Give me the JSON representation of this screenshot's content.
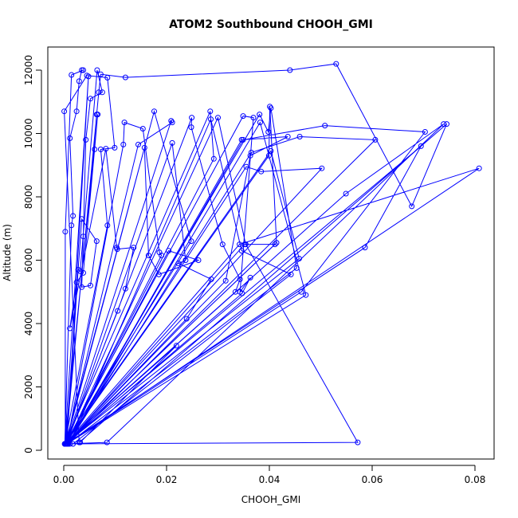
{
  "chart_data": {
    "type": "line",
    "title": "ATOM2 Southbound CHOOH_GMI",
    "xlabel": "CHOOH_GMI",
    "ylabel": "Altitude (m)",
    "xlim": [
      0,
      0.082
    ],
    "ylim": [
      0,
      12500
    ],
    "x_ticks": [
      0.0,
      0.02,
      0.04,
      0.06,
      0.08
    ],
    "x_tick_labels": [
      "0.00",
      "0.02",
      "0.04",
      "0.06",
      "0.08"
    ],
    "y_ticks": [
      0,
      2000,
      4000,
      6000,
      8000,
      10000,
      12000
    ],
    "y_tick_labels": [
      "0",
      "2000",
      "4000",
      "6000",
      "8000",
      "10000",
      "12000"
    ],
    "grid": false,
    "legend": "none",
    "color": "#0000ff",
    "series": [
      {
        "x": [
          0.0003,
          0.0003,
          0.0015,
          0.0038,
          0.0035,
          0.003,
          0.0025,
          0.0012,
          0.0018,
          0.0015,
          0.0002,
          0.0048,
          0.0006,
          0.0028,
          0.0032,
          0.0065,
          0.0075,
          0.0052,
          0.0043,
          0.0038,
          0.0035,
          0.0052,
          0.0064,
          0.0035,
          0.0004,
          0.0064,
          0.0068,
          0.0072,
          0.012,
          0.044,
          0.053,
          0.0677,
          0.0745,
          0.003,
          0.0001,
          0.0045,
          0.0085,
          0.0099,
          0.0072,
          0.0085,
          0.0002,
          0.0066,
          0.006,
          0.0038,
          0.0025,
          0.0012,
          0.0082,
          0.0103,
          0.0104,
          0.0136,
          0.012,
          0.0105,
          0.0004,
          0.0145,
          0.0211,
          0.0209,
          0.0004,
          0.0157,
          0.0165,
          0.0185,
          0.0262,
          0.0204,
          0.0005,
          0.0211,
          0.0237,
          0.0223,
          0.0287,
          0.0239,
          0.0005,
          0.0249,
          0.0248,
          0.0309,
          0.0343,
          0.0334,
          0.0003,
          0.0349,
          0.0369,
          0.0343,
          0.0363,
          0.0347,
          0.0005,
          0.0381,
          0.0398,
          0.0403,
          0.0453,
          0.0008,
          0.0365,
          0.0459,
          0.0606,
          0.0008,
          0.0382,
          0.0471,
          0.0006,
          0.0116,
          0.0118,
          0.0154,
          0.0186,
          0.019,
          0.0004,
          0.0315,
          0.0363,
          0.0436,
          0.0346,
          0.0008,
          0.0349,
          0.0508,
          0.0703,
          0.0462,
          0.0006,
          0.03,
          0.0354,
          0.0572,
          0.0012,
          0.0286,
          0.0346,
          0.0442,
          0.0018,
          0.0005,
          0.0352,
          0.0411,
          0.0003,
          0.0003,
          0.0399,
          0.0401,
          0.0414,
          0.0003,
          0.0002,
          0.0403,
          0.0458,
          0.0003,
          0.0003,
          0.0549,
          0.0739,
          0.0084,
          0.0003,
          0.0342,
          0.0808,
          0.0007,
          0.0004,
          0.0355,
          0.0384,
          0.0502,
          0.0004,
          0.0003,
          0.0695,
          0.0586,
          0.0004,
          0.0003,
          0.0176,
          0.0248,
          0.0003,
          0.0002,
          0.0285,
          0.0292,
          0.0004,
          0.0002,
          0.0219,
          0.0032
        ],
        "y": [
          200,
          6900,
          11850,
          12000,
          12000,
          11650,
          10700,
          9850,
          7400,
          7100,
          200,
          11800,
          200,
          5700,
          5650,
          12000,
          11300,
          11100,
          9800,
          6750,
          5150,
          5200,
          6600,
          7300,
          200,
          10600,
          11300,
          11870,
          11770,
          12000,
          12200,
          7700,
          10300,
          250,
          10700,
          11830,
          11760,
          9550,
          9500,
          7100,
          200,
          10600,
          9500,
          5600,
          5300,
          3850,
          9520,
          6400,
          6350,
          6400,
          5100,
          4400,
          200,
          9650,
          10350,
          10400,
          200,
          9550,
          6150,
          5550,
          6000,
          6300,
          200,
          9700,
          6000,
          5900,
          5400,
          4150,
          200,
          10500,
          10200,
          6500,
          5400,
          5000,
          200,
          10550,
          10500,
          5000,
          5450,
          4950,
          200,
          10600,
          10050,
          10800,
          5750,
          200,
          9400,
          9900,
          9800,
          200,
          10350,
          4900,
          200,
          9650,
          10350,
          10150,
          6250,
          6150,
          200,
          5350,
          9300,
          9900,
          9800,
          200,
          9800,
          10250,
          10050,
          5000,
          200,
          10500,
          6500,
          250,
          200,
          10450,
          6300,
          5550,
          200,
          200,
          6500,
          6500,
          200,
          200,
          9300,
          10850,
          6550,
          200,
          200,
          9450,
          6050,
          200,
          200,
          8100,
          10300,
          250,
          200,
          6500,
          8900,
          200,
          200,
          8950,
          8800,
          8900,
          200,
          200,
          9600,
          6400,
          200,
          200,
          10700,
          6600,
          200,
          200,
          10700,
          9200,
          200,
          200,
          3300,
          250
        ]
      }
    ]
  }
}
